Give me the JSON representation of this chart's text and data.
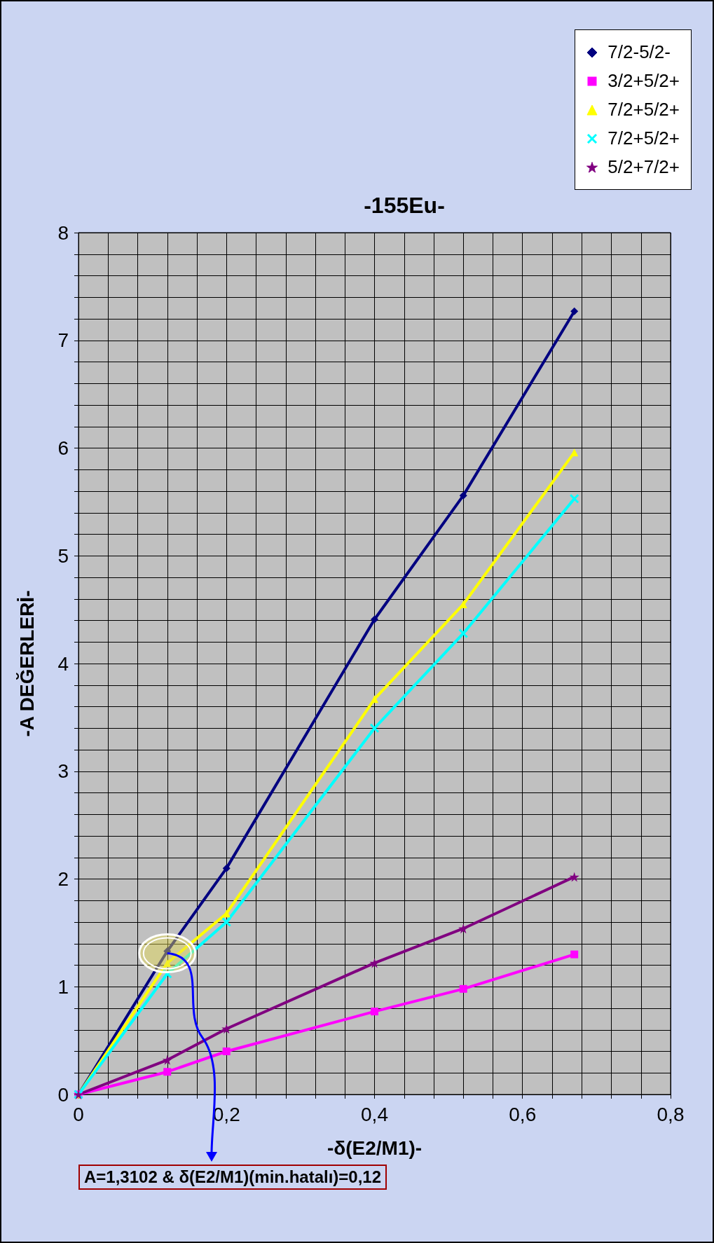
{
  "chart_data": {
    "type": "line",
    "title": "-155Eu-",
    "xlabel": "-δ(E2/M1)-",
    "ylabel": "-A DEĞERLERİ-",
    "annotations": [
      {
        "text": "A=1,3102 &  δ(E2/M1)(min.hatalı)=0,12",
        "x": 0.12,
        "y": 1.3102
      }
    ],
    "x": [
      0,
      0.12,
      0.2,
      0.4,
      0.52,
      0.67
    ],
    "series": [
      {
        "name": "7/2-5/2-",
        "color": "#000080",
        "marker": "diamond",
        "values": [
          0,
          1.33,
          2.1,
          4.41,
          5.56,
          7.27
        ]
      },
      {
        "name": "3/2+5/2+",
        "color": "#ff00ff",
        "marker": "square",
        "values": [
          0,
          0.21,
          0.4,
          0.77,
          0.98,
          1.3
        ]
      },
      {
        "name": "7/2+5/2+",
        "color": "#ffff00",
        "marker": "triangle",
        "values": [
          0,
          1.22,
          1.68,
          3.67,
          4.55,
          5.96
        ]
      },
      {
        "name": "7/2+5/2+",
        "color": "#00ffff",
        "marker": "cross",
        "values": [
          0,
          1.12,
          1.6,
          3.4,
          4.28,
          5.53
        ]
      },
      {
        "name": "5/2+7/2+",
        "color": "#800080",
        "marker": "star",
        "values": [
          0,
          0.32,
          0.61,
          1.22,
          1.54,
          2.02
        ]
      }
    ],
    "xlim": [
      0,
      0.8
    ],
    "xticks": [
      0,
      {
        "value": 0.04,
        "label": null
      },
      {
        "value": 0.08,
        "label": null
      },
      {
        "value": 0.12,
        "label": null
      },
      {
        "value": 0.16,
        "label": null
      },
      {
        "value": 0.2,
        "label": "0,2"
      },
      {
        "value": 0.24,
        "label": null
      },
      {
        "value": 0.28,
        "label": null
      },
      {
        "value": 0.32,
        "label": null
      },
      {
        "value": 0.36,
        "label": null
      },
      {
        "value": 0.4,
        "label": "0,4"
      },
      {
        "value": 0.44,
        "label": null
      },
      {
        "value": 0.48,
        "label": null
      },
      {
        "value": 0.52,
        "label": null
      },
      {
        "value": 0.56,
        "label": null
      },
      {
        "value": 0.6,
        "label": "0,6"
      },
      {
        "value": 0.64,
        "label": null
      },
      {
        "value": 0.68,
        "label": null
      },
      {
        "value": 0.72,
        "label": null
      },
      {
        "value": 0.76,
        "label": null
      },
      {
        "value": 0.8,
        "label": "0,8"
      }
    ],
    "ylim": [
      0,
      8
    ],
    "yticks": [
      0,
      {
        "value": 0.2,
        "label": null
      },
      {
        "value": 0.4,
        "label": null
      },
      {
        "value": 0.6,
        "label": null
      },
      {
        "value": 0.8,
        "label": null
      },
      1,
      {
        "value": 1.2,
        "label": null
      },
      {
        "value": 1.4,
        "label": null
      },
      {
        "value": 1.6,
        "label": null
      },
      {
        "value": 1.8,
        "label": null
      },
      2,
      {
        "value": 2.2,
        "label": null
      },
      {
        "value": 2.4,
        "label": null
      },
      {
        "value": 2.6,
        "label": null
      },
      {
        "value": 2.8,
        "label": null
      },
      3,
      {
        "value": 3.2,
        "label": null
      },
      {
        "value": 3.4,
        "label": null
      },
      {
        "value": 3.6,
        "label": null
      },
      {
        "value": 3.8,
        "label": null
      },
      4,
      {
        "value": 4.2,
        "label": null
      },
      {
        "value": 4.4,
        "label": null
      },
      {
        "value": 4.6,
        "label": null
      },
      {
        "value": 4.8,
        "label": null
      },
      5,
      {
        "value": 5.2,
        "label": null
      },
      {
        "value": 5.4,
        "label": null
      },
      {
        "value": 5.6,
        "label": null
      },
      {
        "value": 5.8,
        "label": null
      },
      6,
      {
        "value": 6.2,
        "label": null
      },
      {
        "value": 6.4,
        "label": null
      },
      {
        "value": 6.6,
        "label": null
      },
      {
        "value": 6.8,
        "label": null
      },
      7,
      {
        "value": 7.2,
        "label": null
      },
      {
        "value": 7.4,
        "label": null
      },
      {
        "value": 7.6,
        "label": null
      },
      {
        "value": 7.8,
        "label": null
      },
      8
    ],
    "grid": true,
    "legend": "top right",
    "line_style": "solid"
  }
}
